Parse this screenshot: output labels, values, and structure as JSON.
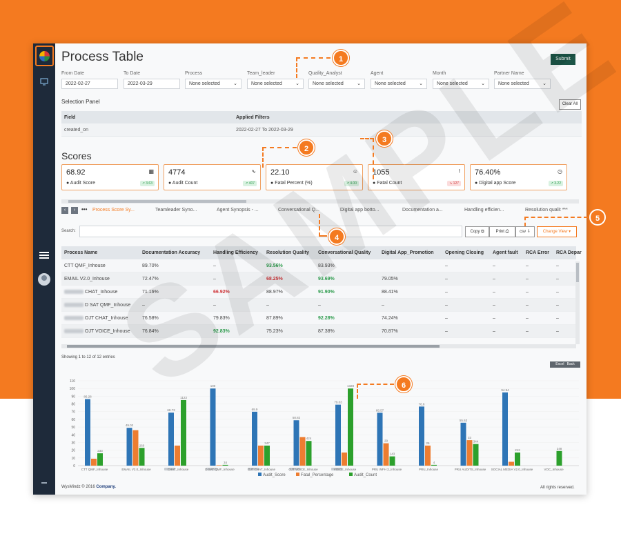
{
  "page_title": "Process Table",
  "filters": [
    {
      "label": "From Date",
      "value": "2022-02-27",
      "dropdown": false
    },
    {
      "label": "To Date",
      "value": "2022-03-29",
      "dropdown": false
    },
    {
      "label": "Process",
      "value": "None selected",
      "dropdown": true
    },
    {
      "label": "Team_leader",
      "value": "None selected",
      "dropdown": true
    },
    {
      "label": "Quality_Analyst",
      "value": "None selected",
      "dropdown": true
    },
    {
      "label": "Agent",
      "value": "None selected",
      "dropdown": true
    },
    {
      "label": "Month",
      "value": "None selected",
      "dropdown": true
    },
    {
      "label": "Partner Name",
      "value": "None selected",
      "dropdown": true
    }
  ],
  "submit_label": "Submit",
  "selection_panel": {
    "title": "Selection Panel",
    "clear_label": "Clear All",
    "headers": [
      "Field",
      "Applied Filters"
    ],
    "rows": [
      [
        "created_on",
        "2022-02-27 To 2022-03-29"
      ]
    ]
  },
  "scores_title": "Scores",
  "score_cards": [
    {
      "value": "68.92",
      "label": "Audit Score",
      "badge": "↗ 3.63",
      "trend": "up",
      "icon": "calculator-icon"
    },
    {
      "value": "4774",
      "label": "Audit Count",
      "badge": "↗ 407",
      "trend": "up",
      "icon": "activity-icon"
    },
    {
      "value": "22.10",
      "label": "Fatal Percent (%)",
      "badge": "↗ 4.00",
      "trend": "up",
      "icon": "smiley-icon"
    },
    {
      "value": "1055",
      "label": "Fatal Count",
      "badge": "↘ 127",
      "trend": "down",
      "icon": "alert-box-icon"
    },
    {
      "value": "76.40%",
      "label": "Digital app Score",
      "badge": "↗ 3.22",
      "trend": "up",
      "icon": "clock-icon"
    }
  ],
  "tabs": [
    "Process Score Sy...",
    "Teamleader Syno...",
    "Agent Synopsis - ...",
    "Conversational Q...",
    "Digital app botto...",
    "Documentation a...",
    "Handling efficien...",
    "Resolution qualit ***"
  ],
  "search_label": "Search:",
  "toolbar": {
    "copy": "Copy",
    "print": "Print",
    "csv": "csv",
    "change_view": "Change View"
  },
  "table": {
    "headers": [
      "Process Name",
      "Documentation Accuracy",
      "Handling Efficiency",
      "Resolution Quality",
      "Conversational Quality",
      "Digital App_Promotion",
      "Opening Closing",
      "Agent fault",
      "RCA Error",
      "RCA Depar"
    ],
    "rows": [
      {
        "name": "CTT QMF_Inhouse",
        "blur": false,
        "cells": [
          "89.70%",
          "–",
          "93.56%",
          "83.93%",
          "",
          "–",
          "–",
          "–",
          "–"
        ],
        "colors": [
          "",
          "",
          "green",
          "",
          "",
          "",
          "",
          "",
          ""
        ]
      },
      {
        "name": "EMAIL V2.0_Inhouse",
        "blur": false,
        "cells": [
          "72.47%",
          "–",
          "68.25%",
          "93.69%",
          "79.05%",
          "–",
          "–",
          "–",
          "–"
        ],
        "colors": [
          "",
          "",
          "red",
          "green",
          "",
          "",
          "",
          "",
          ""
        ]
      },
      {
        "name": "CHAT_Inhouse",
        "blur": true,
        "cells": [
          "71.16%",
          "66.92%",
          "88.97%",
          "91.90%",
          "88.41%",
          "–",
          "–",
          "–",
          "–"
        ],
        "colors": [
          "",
          "red",
          "",
          "green",
          "",
          "",
          "",
          "",
          ""
        ]
      },
      {
        "name": "D SAT QMF_Inhouse",
        "blur": true,
        "cells": [
          "–",
          "–",
          "–",
          "–",
          "–",
          "–",
          "–",
          "–",
          "–"
        ],
        "colors": [
          "",
          "",
          "",
          "",
          "",
          "",
          "",
          "",
          ""
        ]
      },
      {
        "name": "OJT CHAT_Inhouse",
        "blur": true,
        "cells": [
          "76.58%",
          "79.83%",
          "87.89%",
          "92.28%",
          "74.24%",
          "–",
          "–",
          "–",
          "–"
        ],
        "colors": [
          "",
          "",
          "",
          "green",
          "",
          "",
          "",
          "",
          ""
        ]
      },
      {
        "name": "OJT VOICE_Inhouse",
        "blur": true,
        "cells": [
          "76.84%",
          "92.83%",
          "75.23%",
          "87.38%",
          "70.87%",
          "–",
          "–",
          "–",
          "–"
        ],
        "colors": [
          "",
          "green",
          "",
          "",
          "",
          "",
          "",
          "",
          ""
        ]
      }
    ]
  },
  "showing_text": "Showing 1 to 12 of 12 entries",
  "excel_label": "Excel",
  "back_label": "Back",
  "chart_data": {
    "type": "bar",
    "categories": [
      "CTT QMF_Inhouse",
      "EMAIL V2.0_Inhouse",
      "CHAT_Inhouse",
      "D SAT QMF_Inhouse",
      "OJT CHAT_Inhouse",
      "OJT VOICE_Inhouse",
      "VOICE_Inhouse",
      "PRU WFH 2_Inhouse",
      "PRU_Inhouse",
      "PRU AUDITS_Inhouse",
      "SOCIAL MEDIA V2.0_Inhouse",
      "VOC_Inhouse"
    ],
    "blurred_category_prefix": [
      false,
      false,
      true,
      true,
      true,
      true,
      true,
      false,
      false,
      false,
      false,
      false
    ],
    "series": [
      {
        "name": "Audit_Score",
        "color": "#2e75b6",
        "values": [
          86.28,
          49.02,
          68.73,
          100,
          69.9,
          58.82,
          79.03,
          68.57,
          76.6,
          55.63,
          94.94,
          null
        ],
        "labels": [
          "86.28",
          "49.02",
          "68.73",
          "100",
          "69.9",
          "58.82",
          "79.03",
          "68.57",
          "76.6",
          "55.63",
          "94.94",
          ""
        ]
      },
      {
        "name": "Fatal_Percentage",
        "color": "#ed7d31",
        "values": [
          9,
          46,
          26,
          0,
          26,
          37,
          17,
          29,
          26,
          33,
          5,
          null
        ],
        "labels": [
          "",
          "",
          "",
          "",
          "",
          "",
          "",
          "29",
          "26",
          "33",
          "",
          ""
        ]
      },
      {
        "name": "Audit_Count",
        "color": "#2ca02c",
        "values": [
          16,
          23,
          85,
          1,
          26,
          32,
          100,
          12,
          1,
          28,
          17,
          19
        ],
        "labels": [
          "233",
          "260",
          "1123",
          "34",
          "347",
          "424",
          "1328",
          "143",
          "4",
          "344",
          "212",
          "248"
        ]
      }
    ],
    "yticks": [
      0,
      10,
      20,
      30,
      40,
      50,
      60,
      70,
      80,
      90,
      100,
      110
    ],
    "ylim": [
      0,
      110
    ]
  },
  "footer": {
    "brand": "WysMindz © 2016",
    "company": "Company.",
    "rights": "All rights reserved."
  },
  "watermark": "SAMPLE",
  "callouts": [
    "1",
    "2",
    "3",
    "4",
    "5",
    "6"
  ]
}
